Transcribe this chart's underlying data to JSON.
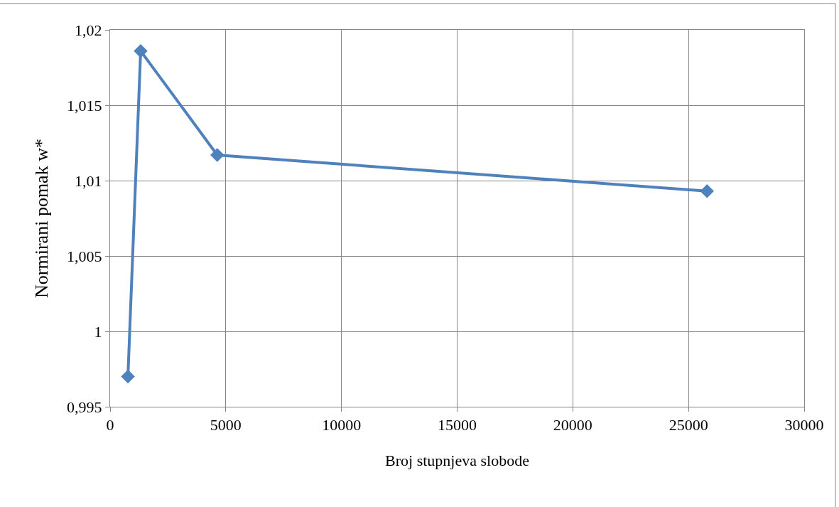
{
  "chart_data": {
    "type": "line",
    "xlabel": "Broj stupnjeva slobode",
    "ylabel": "Normirani pomak w*",
    "x": [
      770,
      1320,
      4630,
      25800
    ],
    "series": [
      {
        "color": "#4f81bd",
        "values": [
          0.997,
          1.0186,
          1.0117,
          1.0093
        ]
      }
    ],
    "xlim": [
      0,
      30000
    ],
    "xticks": [
      0,
      5000,
      10000,
      15000,
      20000,
      25000,
      30000
    ],
    "ylim": [
      0.995,
      1.02
    ],
    "yticks": [
      {
        "value": 0.995,
        "label": "0,995"
      },
      {
        "value": 1,
        "label": "1"
      },
      {
        "value": 1.005,
        "label": "1,005"
      },
      {
        "value": 1.01,
        "label": "1,01"
      },
      {
        "value": 1.015,
        "label": "1,015"
      },
      {
        "value": 1.02,
        "label": "1,02"
      }
    ],
    "grid": true,
    "marker": "diamond",
    "line_style": "solid"
  }
}
